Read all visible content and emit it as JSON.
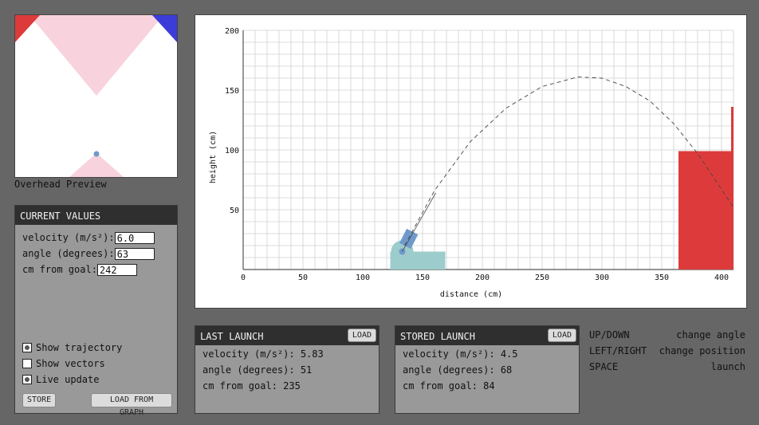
{
  "preview": {
    "label": "Overhead Preview",
    "colors": {
      "pink": "#f8d2dc",
      "red": "#dd3b3b",
      "blue": "#3c3cd8",
      "dot": "#6f9acb"
    }
  },
  "current": {
    "title": "CURRENT VALUES",
    "velocity_label": "velocity (m/s²):",
    "velocity": "6.0",
    "angle_label": "angle (degrees):",
    "angle": "63",
    "goal_label": "cm from goal:",
    "goal": "242",
    "show_trajectory": "Show trajectory",
    "show_trajectory_checked": true,
    "show_vectors": "Show vectors",
    "show_vectors_checked": false,
    "live_update": "Live update",
    "live_update_checked": true,
    "store_label": "STORE",
    "load_graph_label": "LOAD FROM GRAPH"
  },
  "last": {
    "title": "LAST LAUNCH",
    "load_label": "LOAD",
    "velocity": "velocity (m/s²): 5.83",
    "angle": "angle (degrees): 51",
    "goal": "cm from goal: 235"
  },
  "stored": {
    "title": "STORED LAUNCH",
    "load_label": "LOAD",
    "velocity": "velocity (m/s²): 4.5",
    "angle": "angle (degrees): 68",
    "goal": "cm from goal: 84"
  },
  "keys": [
    {
      "key": "UP/DOWN",
      "desc": "change angle"
    },
    {
      "key": "LEFT/RIGHT",
      "desc": "change position"
    },
    {
      "key": "SPACE",
      "desc": "launch"
    }
  ],
  "chart_data": {
    "type": "line",
    "xlabel": "distance (cm)",
    "ylabel": "height (cm)",
    "xlim": [
      0,
      410
    ],
    "ylim": [
      0,
      200
    ],
    "x_ticks": [
      "0",
      "50",
      "100",
      "150",
      "200",
      "250",
      "300",
      "350",
      "400"
    ],
    "y_ticks": [
      "50",
      "100",
      "150",
      "200"
    ],
    "grid": true,
    "series": [
      {
        "style": "dashed",
        "x": [
          135,
          160,
          190,
          220,
          250,
          280,
          300,
          320,
          340,
          360,
          380,
          400,
          410
        ],
        "y": [
          20,
          66,
          107,
          135,
          153,
          161,
          160,
          153,
          141,
          122,
          97,
          67,
          52
        ]
      }
    ],
    "launcher": {
      "x": 133,
      "y": 15,
      "angle_deg": 63,
      "aim_to_x": 161,
      "aim_to_y": 64,
      "base_from_x": 123,
      "base_to_x": 169,
      "base_height": 15
    },
    "goal": {
      "from_x": 364,
      "to_x": 410,
      "height": 99,
      "post_height": 136
    },
    "colors": {
      "launcher_base": "#9ccccc",
      "launcher_barrel": "#6f9acb",
      "goal": "#dd3b3b",
      "grid": "#d0d0d0"
    }
  }
}
